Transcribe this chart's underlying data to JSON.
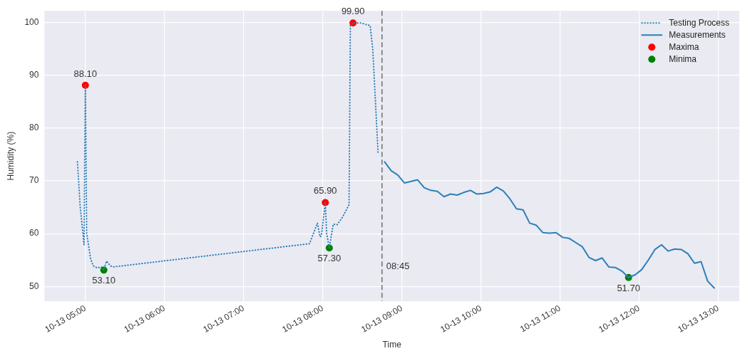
{
  "chart_data": {
    "type": "line",
    "xlabel": "Time",
    "ylabel": "Humidity (%)",
    "xlim": [
      "--10-13T04:29",
      "--10-13T13:16"
    ],
    "ylim": [
      47.2,
      102.2
    ],
    "xticks": [
      {
        "value": "--10-13T05:00",
        "label": "10-13 05:00"
      },
      {
        "value": "--10-13T06:00",
        "label": "10-13 06:00"
      },
      {
        "value": "--10-13T07:00",
        "label": "10-13 07:00"
      },
      {
        "value": "--10-13T08:00",
        "label": "10-13 08:00"
      },
      {
        "value": "--10-13T09:00",
        "label": "10-13 09:00"
      },
      {
        "value": "--10-13T10:00",
        "label": "10-13 10:00"
      },
      {
        "value": "--10-13T11:00",
        "label": "10-13 11:00"
      },
      {
        "value": "--10-13T12:00",
        "label": "10-13 12:00"
      },
      {
        "value": "--10-13T13:00",
        "label": "10-13 13:00"
      }
    ],
    "yticks": [
      50,
      60,
      70,
      80,
      90,
      100
    ],
    "grid": true,
    "legend": "top right",
    "ref_lines": [
      {
        "axis": "x",
        "value": "--10-13T08:45",
        "label": "08:45",
        "color": "#808080",
        "line_style": "dashed"
      }
    ],
    "series": [
      {
        "name": "Testing Process",
        "color": "#2c7fb8",
        "line_style": "dotted",
        "marker": "none",
        "x": [
          "--10-13T04:54",
          "--10-13T04:56",
          "--10-13T04:59",
          "--10-13T05:00",
          "--10-13T05:01",
          "--10-13T05:04",
          "--10-13T05:06",
          "--10-13T05:09",
          "--10-13T05:12",
          "--10-13T05:14",
          "--10-13T05:16",
          "--10-13T05:19",
          "--10-13T05:21",
          "--10-13T07:50",
          "--10-13T07:56",
          "--10-13T07:58",
          "--10-13T07:59",
          "--10-13T08:02",
          "--10-13T08:03",
          "--10-13T08:05",
          "--10-13T08:08",
          "--10-13T08:11",
          "--10-13T08:15",
          "--10-13T08:20",
          "--10-13T08:21",
          "--10-13T08:23",
          "--10-13T08:29",
          "--10-13T08:36",
          "--10-13T08:38",
          "--10-13T08:42"
        ],
        "values": [
          73.6,
          65.3,
          57.9,
          88.1,
          60.1,
          55.2,
          53.9,
          53.5,
          53.7,
          53.1,
          54.8,
          53.9,
          53.7,
          58.1,
          62.0,
          59.4,
          59.6,
          65.9,
          60.1,
          57.3,
          61.8,
          61.7,
          63.1,
          65.5,
          99.4,
          99.9,
          99.9,
          99.4,
          94.9,
          75.3
        ]
      },
      {
        "name": "Measurements",
        "color": "#2c7fb8",
        "line_style": "solid",
        "marker": "none",
        "x": [
          "--10-13T08:47",
          "--10-13T08:52",
          "--10-13T08:57",
          "--10-13T09:02",
          "--10-13T09:07",
          "--10-13T09:12",
          "--10-13T09:17",
          "--10-13T09:22",
          "--10-13T09:27",
          "--10-13T09:32",
          "--10-13T09:37",
          "--10-13T09:42",
          "--10-13T09:47",
          "--10-13T09:52",
          "--10-13T09:57",
          "--10-13T10:02",
          "--10-13T10:07",
          "--10-13T10:12",
          "--10-13T10:17",
          "--10-13T10:22",
          "--10-13T10:27",
          "--10-13T10:32",
          "--10-13T10:37",
          "--10-13T10:42",
          "--10-13T10:47",
          "--10-13T10:52",
          "--10-13T10:57",
          "--10-13T11:02",
          "--10-13T11:07",
          "--10-13T11:12",
          "--10-13T11:17",
          "--10-13T11:22",
          "--10-13T11:27",
          "--10-13T11:32",
          "--10-13T11:37",
          "--10-13T11:42",
          "--10-13T11:47",
          "--10-13T11:52",
          "--10-13T11:57",
          "--10-13T12:02",
          "--10-13T12:07",
          "--10-13T12:12",
          "--10-13T12:17",
          "--10-13T12:22",
          "--10-13T12:27",
          "--10-13T12:32",
          "--10-13T12:37",
          "--10-13T12:42",
          "--10-13T12:47",
          "--10-13T12:52",
          "--10-13T12:57"
        ],
        "values": [
          73.6,
          71.9,
          71.1,
          69.6,
          69.9,
          70.2,
          68.7,
          68.2,
          68.0,
          67.0,
          67.5,
          67.3,
          67.8,
          68.2,
          67.5,
          67.6,
          67.9,
          68.8,
          68.1,
          66.6,
          64.7,
          64.5,
          62.0,
          61.6,
          60.2,
          60.1,
          60.2,
          59.3,
          59.1,
          58.3,
          57.5,
          55.5,
          54.9,
          55.4,
          53.7,
          53.6,
          52.9,
          51.7,
          52.2,
          53.2,
          55.0,
          57.0,
          57.9,
          56.7,
          57.1,
          57.0,
          56.2,
          54.4,
          54.7,
          51.0,
          49.7
        ]
      },
      {
        "name": "Maxima",
        "type": "scatter",
        "color": "#ff0000",
        "marker": "circle",
        "x": [
          "--10-13T05:00",
          "--10-13T08:02",
          "--10-13T08:23"
        ],
        "values": [
          88.1,
          65.9,
          99.9
        ],
        "value_labels": [
          "88.10",
          "65.90",
          "99.90"
        ]
      },
      {
        "name": "Minima",
        "type": "scatter",
        "color": "#008000",
        "marker": "circle",
        "x": [
          "--10-13T05:14",
          "--10-13T08:05",
          "--10-13T11:52"
        ],
        "values": [
          53.1,
          57.3,
          51.7
        ],
        "value_labels": [
          "53.10",
          "57.30",
          "51.70"
        ]
      }
    ]
  }
}
